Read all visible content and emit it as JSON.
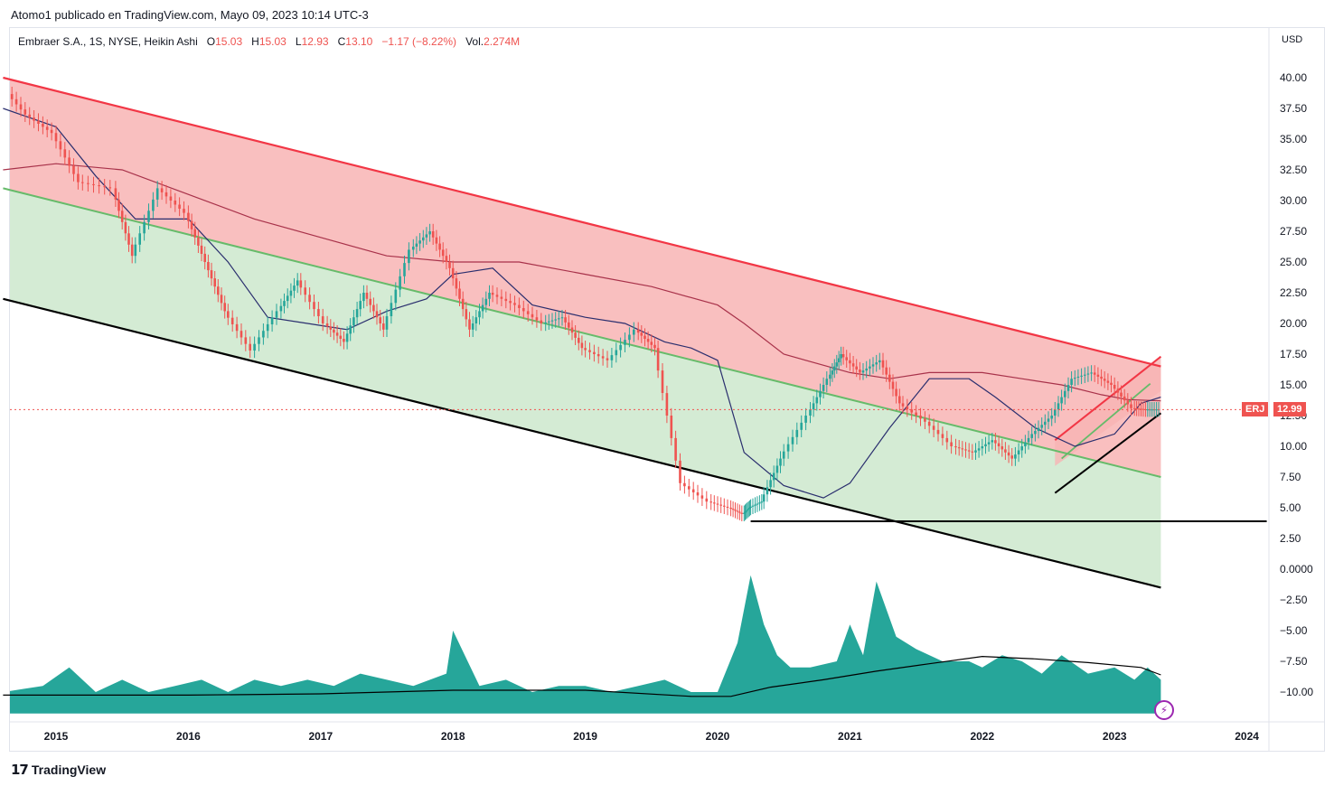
{
  "caption": "Atomo1 publicado en TradingView.com, Mayo 09, 2023 10:14 UTC-3",
  "legend": {
    "symbol": "Embraer S.A., 1S, NYSE, Heikin Ashi",
    "o_label": "O",
    "o_value": "15.03",
    "h_label": "H",
    "h_value": "15.03",
    "l_label": "L",
    "l_value": "12.93",
    "c_label": "C",
    "c_value": "13.10",
    "change": "−1.17 (−8.22%)",
    "vol_label": "Vol.",
    "vol_value": "2.274M"
  },
  "currency": "USD",
  "price_tag": {
    "ticker": "ERJ",
    "price": "12.99"
  },
  "footer": {
    "brand": "TradingView",
    "brand_icon": "tradingview-logo-icon"
  },
  "colors": {
    "up": "#26a69a",
    "down": "#ef5350",
    "upper_channel": "#f23645",
    "mid_channel": "#66bb6a",
    "lower_channel": "#000000",
    "ema_fast": "#2a2e6e",
    "ema_slow": "#a8324a",
    "zone_red": "#f8b4b4",
    "zone_green": "#cfe9cf",
    "volume": "#26a69a",
    "price_line": "#ef5350"
  },
  "chart_data": {
    "type": "line",
    "ylim": [
      -11.75,
      43.0
    ],
    "yticks": [
      "40.00",
      "37.50",
      "35.00",
      "32.50",
      "30.00",
      "27.50",
      "25.00",
      "22.50",
      "20.00",
      "17.50",
      "15.00",
      "12.50",
      "10.00",
      "7.50",
      "5.00",
      "2.50",
      "0.0000",
      "−2.50",
      "−5.00",
      "−7.50",
      "−10.00"
    ],
    "xticks": [
      "2015",
      "2016",
      "2017",
      "2018",
      "2019",
      "2020",
      "2021",
      "2022",
      "2023",
      "2024"
    ],
    "price": {
      "x": [
        2014.6,
        2014.8,
        2015.0,
        2015.2,
        2015.45,
        2015.6,
        2015.8,
        2016.0,
        2016.15,
        2016.3,
        2016.5,
        2016.7,
        2016.85,
        2017.05,
        2017.2,
        2017.35,
        2017.5,
        2017.7,
        2017.85,
        2018.0,
        2018.15,
        2018.3,
        2018.5,
        2018.7,
        2018.85,
        2019.0,
        2019.2,
        2019.4,
        2019.55,
        2019.75,
        2019.95,
        2020.1,
        2020.2,
        2020.25,
        2020.35,
        2020.5,
        2020.7,
        2020.85,
        2020.95,
        2021.1,
        2021.25,
        2021.4,
        2021.6,
        2021.8,
        2021.95,
        2022.1,
        2022.25,
        2022.4,
        2022.55,
        2022.7,
        2022.85,
        2023.0,
        2023.15,
        2023.25,
        2023.35
      ],
      "y": [
        39.5,
        37.0,
        35.5,
        31.5,
        31.0,
        25.5,
        31.0,
        29.0,
        25.0,
        21.0,
        17.8,
        21.0,
        23.5,
        20.0,
        18.5,
        22.5,
        19.5,
        26.0,
        27.5,
        24.5,
        19.5,
        22.5,
        21.5,
        20.0,
        20.5,
        18.0,
        17.0,
        19.5,
        18.0,
        7.0,
        5.5,
        5.0,
        4.5,
        5.0,
        5.5,
        9.0,
        12.5,
        15.5,
        17.5,
        16.0,
        17.0,
        13.5,
        12.0,
        10.0,
        9.5,
        10.5,
        9.0,
        11.0,
        12.5,
        15.5,
        16.0,
        15.0,
        13.1,
        13.0,
        13.0
      ]
    },
    "ema_fast": {
      "x": [
        2014.6,
        2015.0,
        2015.3,
        2015.6,
        2016.0,
        2016.3,
        2016.6,
        2016.9,
        2017.2,
        2017.5,
        2017.8,
        2018.0,
        2018.3,
        2018.6,
        2019.0,
        2019.3,
        2019.6,
        2019.8,
        2020.0,
        2020.2,
        2020.5,
        2020.8,
        2021.0,
        2021.3,
        2021.6,
        2021.9,
        2022.1,
        2022.4,
        2022.7,
        2023.0,
        2023.2,
        2023.35
      ],
      "y": [
        37.5,
        36.0,
        32.0,
        28.5,
        28.5,
        25.0,
        20.5,
        20.0,
        19.5,
        21.0,
        22.0,
        24.0,
        24.5,
        21.5,
        20.5,
        20.0,
        18.5,
        18.0,
        17.0,
        9.5,
        6.8,
        5.8,
        7.0,
        11.5,
        15.5,
        15.5,
        14.0,
        11.5,
        10.0,
        11.0,
        13.5,
        14.0
      ]
    },
    "ema_slow": {
      "x": [
        2014.6,
        2015.0,
        2015.5,
        2016.0,
        2016.5,
        2017.0,
        2017.5,
        2018.0,
        2018.5,
        2019.0,
        2019.5,
        2020.0,
        2020.2,
        2020.5,
        2021.0,
        2021.3,
        2021.6,
        2022.0,
        2022.3,
        2022.6,
        2022.9,
        2023.1,
        2023.35
      ],
      "y": [
        32.5,
        33.0,
        32.5,
        30.5,
        28.5,
        27.0,
        25.5,
        25.0,
        25.0,
        24.0,
        23.0,
        21.5,
        20.0,
        17.5,
        16.0,
        15.5,
        16.0,
        16.0,
        15.5,
        15.0,
        14.2,
        13.8,
        13.7
      ]
    },
    "volume": {
      "x": [
        2014.6,
        2014.9,
        2015.1,
        2015.3,
        2015.5,
        2015.7,
        2015.9,
        2016.1,
        2016.3,
        2016.5,
        2016.7,
        2016.9,
        2017.1,
        2017.3,
        2017.5,
        2017.7,
        2017.95,
        2018.0,
        2018.2,
        2018.4,
        2018.6,
        2018.8,
        2019.0,
        2019.2,
        2019.4,
        2019.6,
        2019.8,
        2020.0,
        2020.15,
        2020.25,
        2020.35,
        2020.45,
        2020.55,
        2020.7,
        2020.9,
        2021.0,
        2021.1,
        2021.2,
        2021.35,
        2021.5,
        2021.7,
        2021.9,
        2022.0,
        2022.15,
        2022.3,
        2022.45,
        2022.6,
        2022.8,
        2023.0,
        2023.15,
        2023.25,
        2023.35
      ],
      "y": [
        -10.0,
        -9.5,
        -8.0,
        -10.0,
        -9.0,
        -10.0,
        -9.5,
        -9.0,
        -10.0,
        -9.0,
        -9.5,
        -9.0,
        -9.5,
        -8.5,
        -9.0,
        -9.5,
        -8.5,
        -5.0,
        -9.5,
        -9.0,
        -10.0,
        -9.5,
        -9.5,
        -10.0,
        -9.5,
        -9.0,
        -10.0,
        -10.0,
        -6.0,
        -0.5,
        -4.5,
        -7.0,
        -8.0,
        -8.0,
        -7.5,
        -4.5,
        -7.0,
        -1.0,
        -5.5,
        -6.5,
        -7.5,
        -7.5,
        -8.0,
        -7.0,
        -7.5,
        -8.5,
        -7.0,
        -8.5,
        -8.0,
        -9.0,
        -8.0,
        -9.0
      ]
    },
    "volume_ma": {
      "x": [
        2014.6,
        2016.0,
        2017.0,
        2018.0,
        2019.0,
        2019.8,
        2020.1,
        2020.4,
        2020.8,
        2021.2,
        2021.6,
        2022.0,
        2022.4,
        2022.8,
        2023.2,
        2023.35
      ],
      "y": [
        -10.25,
        -10.25,
        -10.15,
        -9.85,
        -9.85,
        -10.35,
        -10.35,
        -9.6,
        -9.0,
        -8.3,
        -7.7,
        -7.1,
        -7.3,
        -7.6,
        -8.0,
        -8.6
      ]
    },
    "channel_upper": {
      "x": [
        2014.6,
        2023.35
      ],
      "y": [
        40.0,
        16.5
      ]
    },
    "channel_mid": {
      "x": [
        2014.6,
        2023.35
      ],
      "y": [
        31.0,
        7.5
      ]
    },
    "channel_lower": {
      "x": [
        2014.6,
        2023.35
      ],
      "y": [
        22.0,
        -1.5
      ]
    },
    "support_line": {
      "x": [
        2020.25,
        2024.15
      ],
      "y": [
        3.9,
        3.9
      ]
    },
    "rising_wedge_upper": {
      "x": [
        2022.55,
        2023.35
      ],
      "y": [
        10.5,
        17.3
      ]
    },
    "rising_wedge_lower": {
      "x": [
        2022.55,
        2023.35
      ],
      "y": [
        6.2,
        12.7
      ]
    },
    "last_price": 12.99
  }
}
